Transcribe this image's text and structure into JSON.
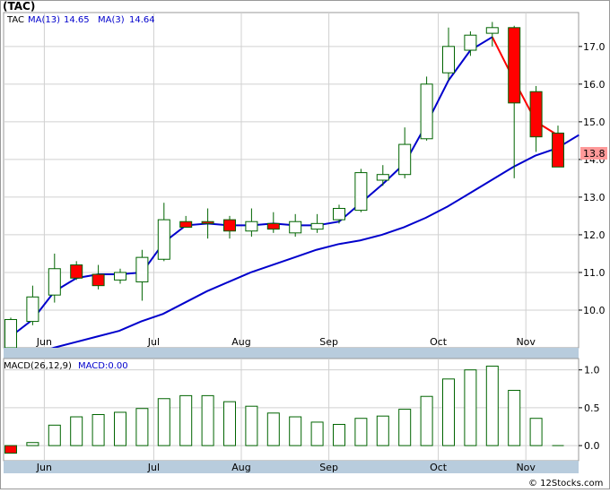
{
  "ticker_title": "(TAC)",
  "legend": {
    "symbol": "TAC",
    "ma13_label": "MA(13)",
    "ma13_value": "14.65",
    "ma3_label": "MA(3)",
    "ma3_value": "14.64"
  },
  "last_price_label": "13.8",
  "macd_title": "MACD(26,12,9)",
  "macd_value_label": "MACD:0.00",
  "watermark": "© 12Stocks.com",
  "colors": {
    "up_fill": "#ffffff",
    "up_stroke": "#006400",
    "down_fill": "#ff0000",
    "down_stroke": "#006400",
    "ma_long": "#0000cc",
    "ma_short": "#ff0000",
    "grid": "#d0d0d0",
    "axis_band": "#b8ccdd",
    "last_price_bg": "#ff9999"
  },
  "chart_data": [
    {
      "type": "candlestick",
      "title": "(TAC)",
      "ylim": [
        9.0,
        17.9
      ],
      "yticks": [
        10.0,
        11.0,
        12.0,
        13.0,
        14.0,
        15.0,
        16.0,
        17.0
      ],
      "ytick_labels": [
        "10.0",
        "11.0",
        "12.0",
        "13.0",
        "14.0",
        "15.0",
        "16.0",
        "17.0"
      ],
      "xticks": [
        "Jun",
        "Jul",
        "Aug",
        "Sep",
        "Oct",
        "Nov"
      ],
      "xtick_week_index": [
        1,
        6,
        10,
        14,
        19,
        23
      ],
      "grid": true,
      "candles": [
        {
          "o": 9.0,
          "h": 9.8,
          "l": 9.0,
          "c": 9.75
        },
        {
          "o": 9.7,
          "h": 10.65,
          "l": 9.6,
          "c": 10.35
        },
        {
          "o": 10.4,
          "h": 11.5,
          "l": 10.2,
          "c": 11.1
        },
        {
          "o": 11.2,
          "h": 11.3,
          "l": 10.8,
          "c": 10.85
        },
        {
          "o": 10.95,
          "h": 11.2,
          "l": 10.55,
          "c": 10.65
        },
        {
          "o": 10.8,
          "h": 11.1,
          "l": 10.7,
          "c": 11.0
        },
        {
          "o": 10.75,
          "h": 11.6,
          "l": 10.25,
          "c": 11.4
        },
        {
          "o": 11.35,
          "h": 12.85,
          "l": 11.3,
          "c": 12.4
        },
        {
          "o": 12.35,
          "h": 12.5,
          "l": 12.2,
          "c": 12.2
        },
        {
          "o": 12.35,
          "h": 12.7,
          "l": 11.9,
          "c": 12.3
        },
        {
          "o": 12.4,
          "h": 12.5,
          "l": 11.9,
          "c": 12.1
        },
        {
          "o": 12.1,
          "h": 12.7,
          "l": 11.95,
          "c": 12.35
        },
        {
          "o": 12.3,
          "h": 12.6,
          "l": 12.05,
          "c": 12.15
        },
        {
          "o": 12.05,
          "h": 12.55,
          "l": 11.95,
          "c": 12.35
        },
        {
          "o": 12.15,
          "h": 12.55,
          "l": 12.05,
          "c": 12.3
        },
        {
          "o": 12.4,
          "h": 12.8,
          "l": 12.3,
          "c": 12.7
        },
        {
          "o": 12.65,
          "h": 13.75,
          "l": 12.6,
          "c": 13.65
        },
        {
          "o": 13.45,
          "h": 13.85,
          "l": 13.3,
          "c": 13.6
        },
        {
          "o": 13.6,
          "h": 14.85,
          "l": 13.5,
          "c": 14.4
        },
        {
          "o": 14.55,
          "h": 16.2,
          "l": 14.5,
          "c": 16.0
        },
        {
          "o": 16.3,
          "h": 17.5,
          "l": 16.1,
          "c": 17.0
        },
        {
          "o": 16.9,
          "h": 17.4,
          "l": 16.75,
          "c": 17.3
        },
        {
          "o": 17.35,
          "h": 17.65,
          "l": 17.0,
          "c": 17.5
        },
        {
          "o": 17.5,
          "h": 17.55,
          "l": 13.5,
          "c": 15.5
        },
        {
          "o": 15.8,
          "h": 15.95,
          "l": 14.2,
          "c": 14.6
        },
        {
          "o": 14.7,
          "h": 14.9,
          "l": 13.8,
          "c": 13.8
        }
      ],
      "ma13": [
        8.8,
        9.0,
        9.15,
        9.3,
        9.45,
        9.7,
        9.9,
        10.2,
        10.5,
        10.75,
        11.0,
        11.2,
        11.4,
        11.6,
        11.75,
        11.85,
        12.0,
        12.2,
        12.45,
        12.75,
        13.1,
        13.45,
        13.8,
        14.1,
        14.3,
        14.65
      ],
      "ma13_start_index": 1,
      "ma3": [
        9.3,
        9.75,
        10.5,
        10.85,
        10.95,
        10.95,
        11.0,
        11.8,
        12.25,
        12.3,
        12.25,
        12.25,
        12.3,
        12.25,
        12.25,
        12.35,
        12.85,
        13.35,
        13.9,
        14.95,
        16.1,
        16.9,
        17.25,
        null,
        null,
        14.64
      ],
      "ma3_red_from_index": 22
    },
    {
      "type": "bar",
      "title": "MACD(26,12,9)",
      "ylim": [
        -0.2,
        1.15
      ],
      "yticks": [
        0.0,
        0.5,
        1.0
      ],
      "ytick_labels": [
        "0.0",
        "0.5",
        "1.0"
      ],
      "values": [
        -0.1,
        0.04,
        0.27,
        0.38,
        0.41,
        0.44,
        0.49,
        0.62,
        0.66,
        0.66,
        0.58,
        0.52,
        0.43,
        0.38,
        0.31,
        0.28,
        0.36,
        0.39,
        0.48,
        0.65,
        0.88,
        1.0,
        1.05,
        0.73,
        0.36,
        0.0
      ]
    }
  ]
}
